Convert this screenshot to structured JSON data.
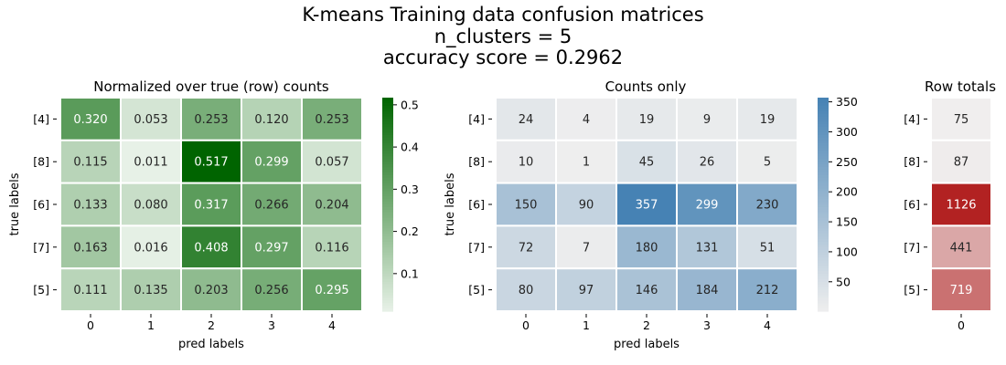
{
  "suptitle": {
    "line1": "K-means Training data confusion matrices",
    "line2": "n_clusters = 5",
    "line3": "accuracy score = 0.2962"
  },
  "chart_data": [
    {
      "type": "heatmap",
      "title": "Normalized over true (row) counts",
      "xlabel": "pred labels",
      "ylabel": "true labels",
      "x_categories": [
        "0",
        "1",
        "2",
        "3",
        "4"
      ],
      "y_categories": [
        "[4]",
        "[8]",
        "[6]",
        "[7]",
        "[5]"
      ],
      "values": [
        [
          0.32,
          0.053,
          0.253,
          0.12,
          0.253
        ],
        [
          0.115,
          0.011,
          0.517,
          0.299,
          0.057
        ],
        [
          0.133,
          0.08,
          0.317,
          0.266,
          0.204
        ],
        [
          0.163,
          0.016,
          0.408,
          0.297,
          0.116
        ],
        [
          0.111,
          0.135,
          0.203,
          0.256,
          0.295
        ]
      ],
      "value_labels": [
        [
          "0.320",
          "0.053",
          "0.253",
          "0.120",
          "0.253"
        ],
        [
          "0.115",
          "0.011",
          "0.517",
          "0.299",
          "0.057"
        ],
        [
          "0.133",
          "0.080",
          "0.317",
          "0.266",
          "0.204"
        ],
        [
          "0.163",
          "0.016",
          "0.408",
          "0.297",
          "0.116"
        ],
        [
          "0.111",
          "0.135",
          "0.203",
          "0.256",
          "0.295"
        ]
      ],
      "colormap": {
        "low": "#e7f1e7",
        "high": "#006400"
      },
      "vmin": 0.011,
      "vmax": 0.517,
      "colorbar_ticks": [
        0.1,
        0.2,
        0.3,
        0.4,
        0.5
      ],
      "colorbar_tick_labels": [
        "0.1",
        "0.2",
        "0.3",
        "0.4",
        "0.5"
      ]
    },
    {
      "type": "heatmap",
      "title": "Counts only",
      "xlabel": "pred labels",
      "ylabel": "true labels",
      "x_categories": [
        "0",
        "1",
        "2",
        "3",
        "4"
      ],
      "y_categories": [
        "[4]",
        "[8]",
        "[6]",
        "[7]",
        "[5]"
      ],
      "values": [
        [
          24,
          4,
          19,
          9,
          19
        ],
        [
          10,
          1,
          45,
          26,
          5
        ],
        [
          150,
          90,
          357,
          299,
          230
        ],
        [
          72,
          7,
          180,
          131,
          51
        ],
        [
          80,
          97,
          146,
          184,
          212
        ]
      ],
      "colormap": {
        "low": "#eeeeee",
        "high": "#4682b4"
      },
      "vmin": 1,
      "vmax": 357,
      "colorbar_ticks": [
        50,
        100,
        150,
        200,
        250,
        300,
        350
      ],
      "colorbar_tick_labels": [
        "50",
        "100",
        "150",
        "200",
        "250",
        "300",
        "350"
      ]
    },
    {
      "type": "heatmap",
      "title": "Row totals",
      "x_categories": [
        "0"
      ],
      "y_categories": [
        "[4]",
        "[8]",
        "[6]",
        "[7]",
        "[5]"
      ],
      "values": [
        [
          75
        ],
        [
          87
        ],
        [
          1126
        ],
        [
          441
        ],
        [
          719
        ]
      ],
      "colormap": {
        "low": "#f0eeee",
        "high": "#b22222"
      },
      "vmin": 75,
      "vmax": 1126
    }
  ]
}
